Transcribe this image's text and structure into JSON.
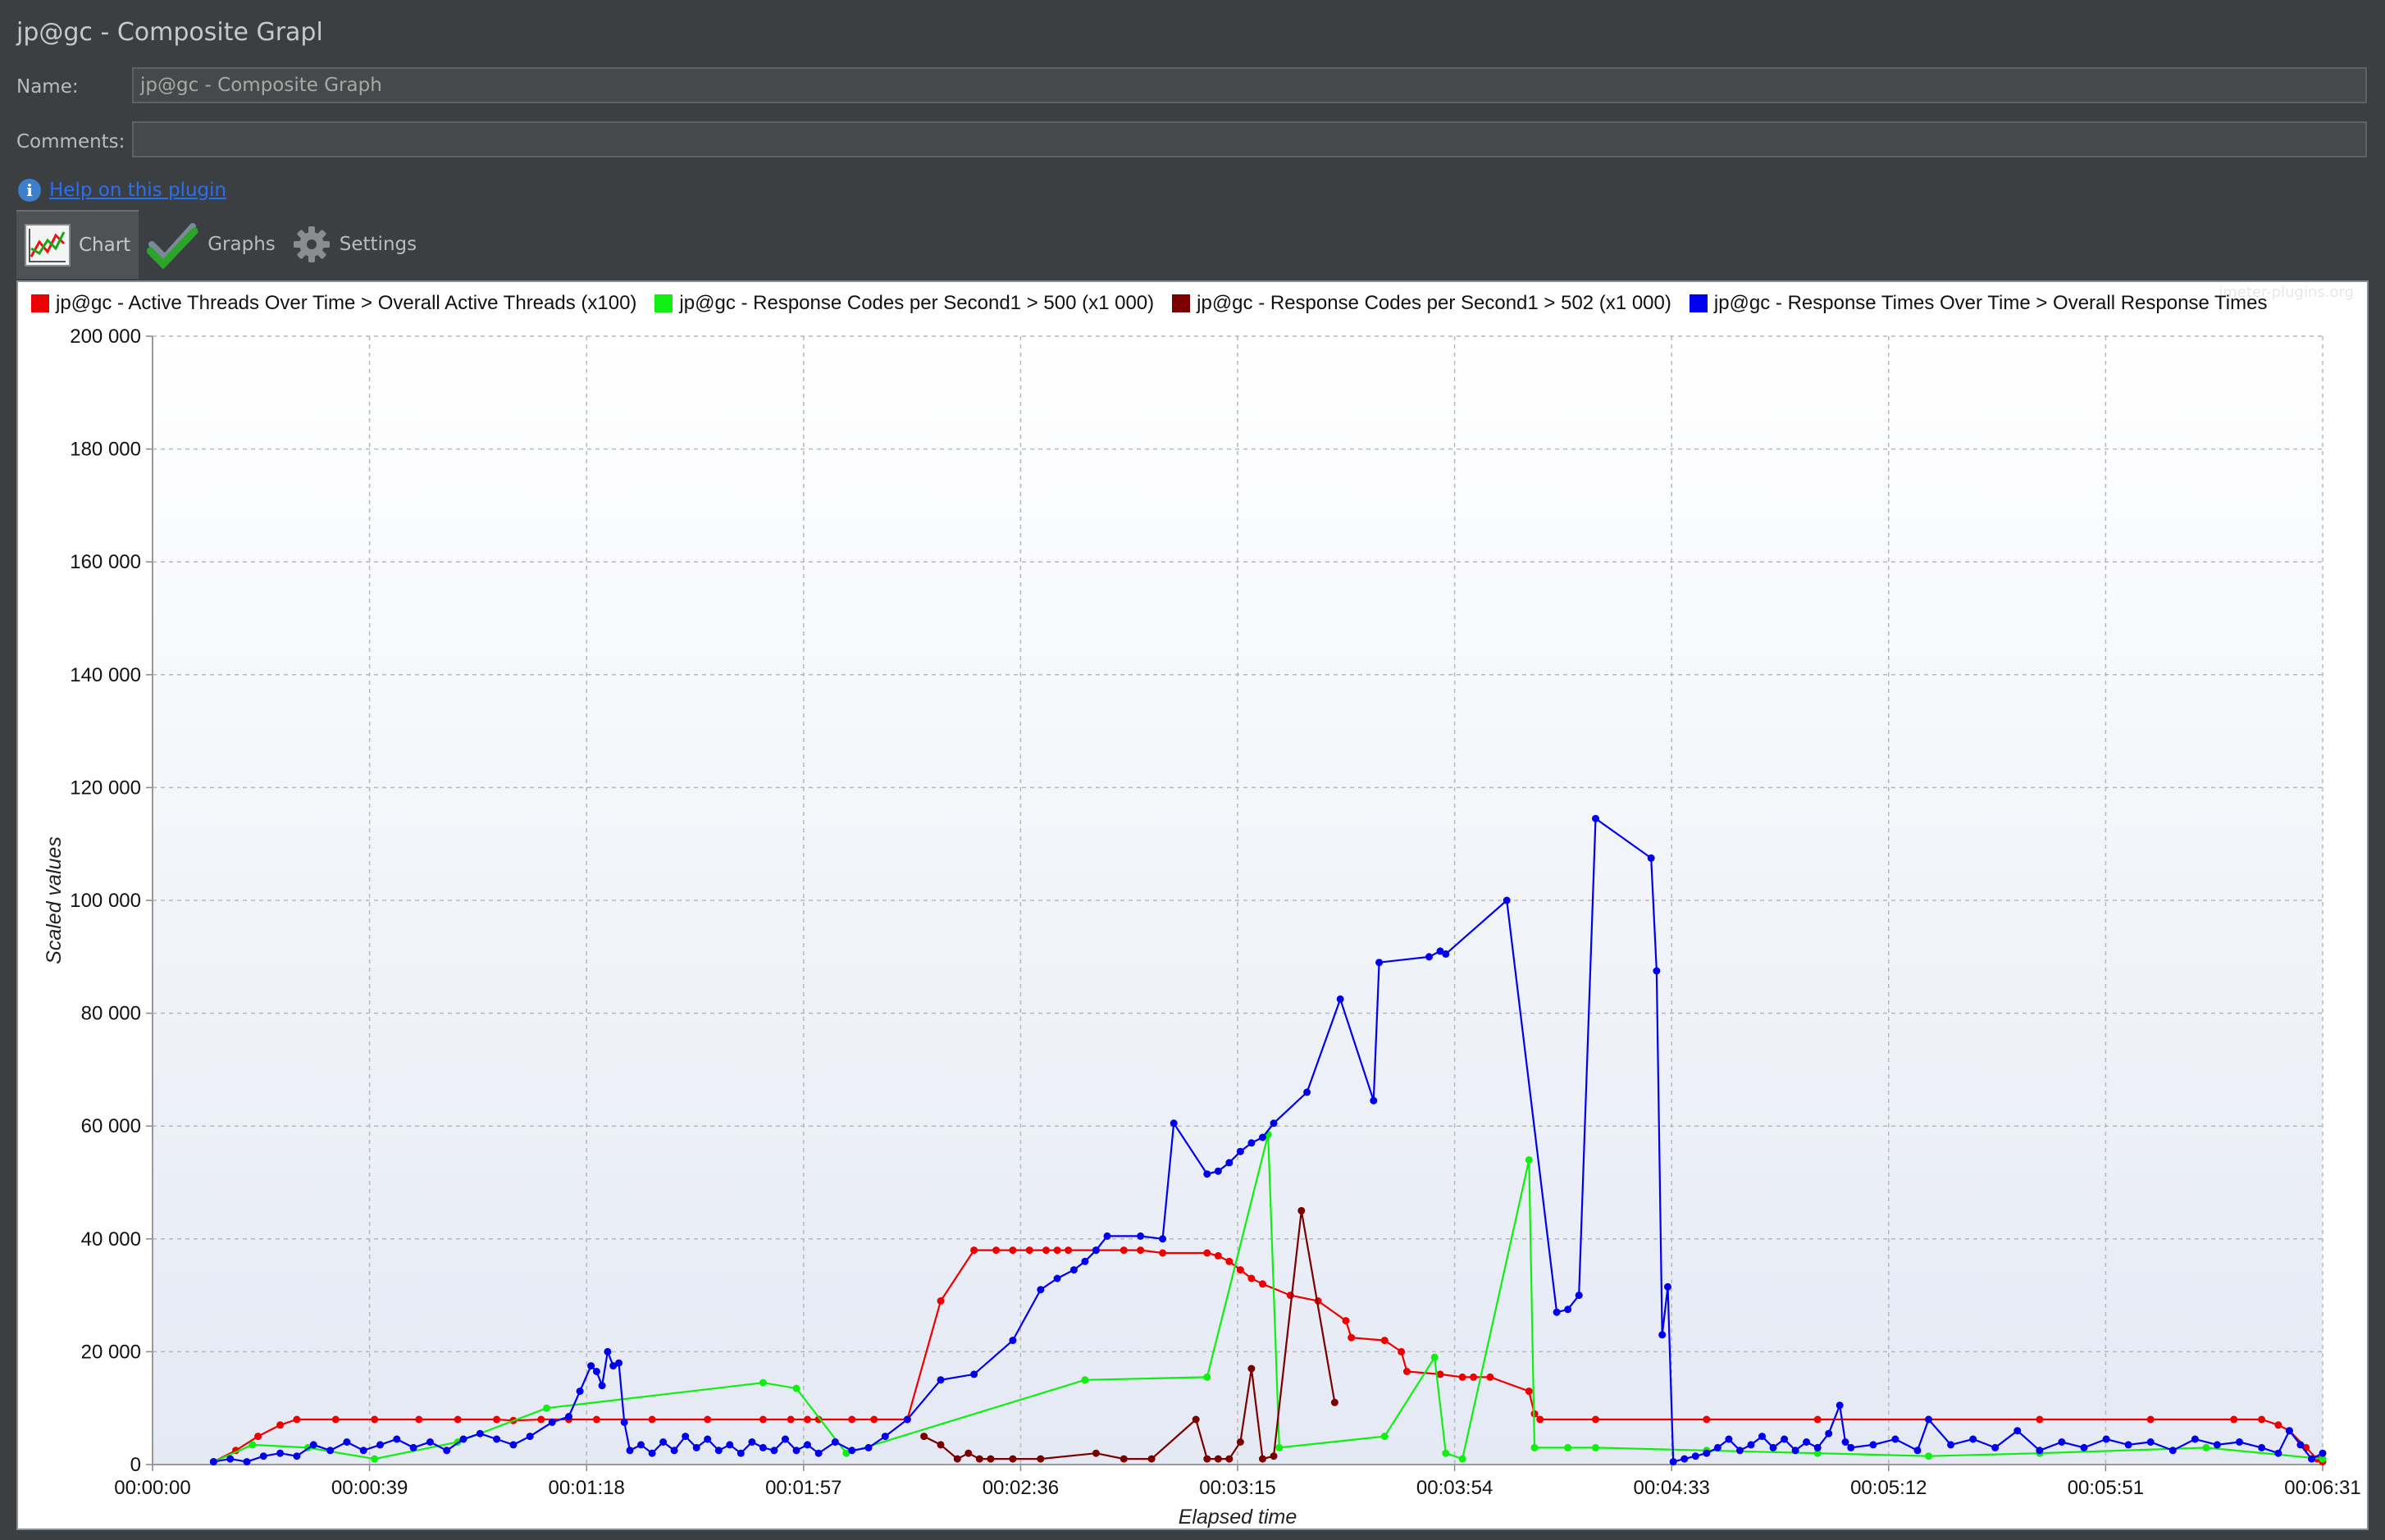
{
  "panel": {
    "title": "jp@gc - Composite Grapl"
  },
  "form": {
    "name_label": "Name:",
    "name_value": "jp@gc - Composite Graph",
    "comments_label": "Comments:",
    "comments_value": ""
  },
  "help": {
    "icon": "info-icon",
    "link_text": "Help on this plugin"
  },
  "tabs": [
    {
      "label": "Chart",
      "icon": "chart-icon",
      "active": true
    },
    {
      "label": "Graphs",
      "icon": "checkmark-icon",
      "active": false
    },
    {
      "label": "Settings",
      "icon": "gear-icon",
      "active": false
    }
  ],
  "watermark": "jmeter-plugins.org",
  "colors": {
    "threads": "#ee0000",
    "codes500": "#11ee11",
    "codes502": "#7a0000",
    "response": "#0000ee"
  },
  "chart_data": {
    "type": "line",
    "xlabel": "Elapsed time",
    "ylabel": "Scaled values",
    "x_unit": "seconds",
    "xlim": [
      0,
      391
    ],
    "ylim": [
      0,
      200000
    ],
    "x_ticks": [
      "00:00:00",
      "00:00:39",
      "00:01:18",
      "00:01:57",
      "00:02:36",
      "00:03:15",
      "00:03:54",
      "00:04:33",
      "00:05:12",
      "00:05:51",
      "00:06:31"
    ],
    "y_ticks": [
      "0",
      "20 000",
      "40 000",
      "60 000",
      "80 000",
      "100 000",
      "120 000",
      "140 000",
      "160 000",
      "180 000",
      "200 000"
    ],
    "grid": true,
    "legend_position": "top",
    "series": [
      {
        "name": "jp@gc - Active Threads Over Time > Overall Active Threads (x100)",
        "points": [
          [
            11,
            500
          ],
          [
            15,
            2500
          ],
          [
            19,
            5000
          ],
          [
            23,
            7000
          ],
          [
            26,
            8000
          ],
          [
            33,
            8000
          ],
          [
            40,
            8000
          ],
          [
            48,
            8000
          ],
          [
            55,
            8000
          ],
          [
            62,
            8000
          ],
          [
            65,
            7800
          ],
          [
            70,
            8000
          ],
          [
            75,
            8000
          ],
          [
            80,
            8000
          ],
          [
            90,
            8000
          ],
          [
            100,
            8000
          ],
          [
            110,
            8000
          ],
          [
            115,
            8000
          ],
          [
            118,
            8000
          ],
          [
            120,
            8000
          ],
          [
            126,
            8000
          ],
          [
            130,
            8000
          ],
          [
            136,
            8000
          ],
          [
            142,
            29000
          ],
          [
            148,
            38000
          ],
          [
            152,
            38000
          ],
          [
            155,
            38000
          ],
          [
            158,
            38000
          ],
          [
            161,
            38000
          ],
          [
            163,
            38000
          ],
          [
            165,
            38000
          ],
          [
            170,
            38000
          ],
          [
            175,
            38000
          ],
          [
            178,
            38000
          ],
          [
            182,
            37500
          ],
          [
            190,
            37500
          ],
          [
            192,
            37000
          ],
          [
            194,
            36000
          ],
          [
            196,
            34500
          ],
          [
            198,
            33000
          ],
          [
            200,
            32000
          ],
          [
            205,
            30000
          ],
          [
            210,
            29000
          ],
          [
            215,
            25500
          ],
          [
            216,
            22500
          ],
          [
            222,
            22000
          ],
          [
            225,
            20000
          ],
          [
            226,
            16500
          ],
          [
            232,
            16000
          ],
          [
            236,
            15500
          ],
          [
            238,
            15500
          ],
          [
            241,
            15500
          ],
          [
            248,
            13000
          ],
          [
            249,
            9000
          ],
          [
            250,
            8000
          ],
          [
            260,
            8000
          ],
          [
            280,
            8000
          ],
          [
            300,
            8000
          ],
          [
            320,
            8000
          ],
          [
            340,
            8000
          ],
          [
            360,
            8000
          ],
          [
            375,
            8000
          ],
          [
            380,
            8000
          ],
          [
            383,
            7000
          ],
          [
            385,
            6000
          ],
          [
            388,
            3000
          ],
          [
            390,
            1000
          ],
          [
            391,
            500
          ]
        ]
      },
      {
        "name": "jp@gc - Response Codes per Second1 > 500 (x1 000)",
        "points": [
          [
            11,
            500
          ],
          [
            18,
            3500
          ],
          [
            28,
            3000
          ],
          [
            40,
            1000
          ],
          [
            55,
            4000
          ],
          [
            71,
            10000
          ],
          [
            110,
            14500
          ],
          [
            116,
            13500
          ],
          [
            125,
            2000
          ],
          [
            168,
            15000
          ],
          [
            190,
            15500
          ],
          [
            201,
            58500
          ],
          [
            203,
            3000
          ],
          [
            222,
            5000
          ],
          [
            231,
            19000
          ],
          [
            233,
            2000
          ],
          [
            236,
            1000
          ],
          [
            248,
            54000
          ],
          [
            249,
            3000
          ],
          [
            255,
            3000
          ],
          [
            260,
            3000
          ],
          [
            280,
            2500
          ],
          [
            300,
            2000
          ],
          [
            320,
            1500
          ],
          [
            340,
            2000
          ],
          [
            370,
            3000
          ],
          [
            391,
            1000
          ]
        ]
      },
      {
        "name": "jp@gc - Response Codes per Second1 > 502 (x1 000)",
        "points": [
          [
            139,
            5000
          ],
          [
            142,
            3500
          ],
          [
            145,
            1000
          ],
          [
            147,
            2000
          ],
          [
            149,
            1000
          ],
          [
            151,
            1000
          ],
          [
            155,
            1000
          ],
          [
            160,
            1000
          ],
          [
            170,
            2000
          ],
          [
            175,
            1000
          ],
          [
            180,
            1000
          ],
          [
            188,
            8000
          ],
          [
            190,
            1000
          ],
          [
            192,
            1000
          ],
          [
            194,
            1000
          ],
          [
            196,
            4000
          ],
          [
            198,
            17000
          ],
          [
            200,
            1000
          ],
          [
            202,
            1500
          ],
          [
            207,
            45000
          ],
          [
            213,
            11000
          ]
        ]
      },
      {
        "name": "jp@gc - Response Times Over Time > Overall Response Times",
        "points": [
          [
            11,
            500
          ],
          [
            14,
            1000
          ],
          [
            17,
            500
          ],
          [
            20,
            1500
          ],
          [
            23,
            2000
          ],
          [
            26,
            1500
          ],
          [
            29,
            3500
          ],
          [
            32,
            2500
          ],
          [
            35,
            4000
          ],
          [
            38,
            2500
          ],
          [
            41,
            3500
          ],
          [
            44,
            4500
          ],
          [
            47,
            3000
          ],
          [
            50,
            4000
          ],
          [
            53,
            2500
          ],
          [
            56,
            4500
          ],
          [
            59,
            5500
          ],
          [
            62,
            4500
          ],
          [
            65,
            3500
          ],
          [
            68,
            5000
          ],
          [
            72,
            7500
          ],
          [
            75,
            8500
          ],
          [
            77,
            13000
          ],
          [
            79,
            17500
          ],
          [
            80,
            16500
          ],
          [
            81,
            14000
          ],
          [
            82,
            20000
          ],
          [
            83,
            17500
          ],
          [
            84,
            18000
          ],
          [
            85,
            7500
          ],
          [
            86,
            2500
          ],
          [
            88,
            3500
          ],
          [
            90,
            2000
          ],
          [
            92,
            4000
          ],
          [
            94,
            2500
          ],
          [
            96,
            5000
          ],
          [
            98,
            3000
          ],
          [
            100,
            4500
          ],
          [
            102,
            2500
          ],
          [
            104,
            3500
          ],
          [
            106,
            2000
          ],
          [
            108,
            4000
          ],
          [
            110,
            3000
          ],
          [
            112,
            2500
          ],
          [
            114,
            4500
          ],
          [
            116,
            2500
          ],
          [
            118,
            3500
          ],
          [
            120,
            2000
          ],
          [
            123,
            4000
          ],
          [
            126,
            2500
          ],
          [
            129,
            3000
          ],
          [
            132,
            5000
          ],
          [
            136,
            8000
          ],
          [
            142,
            15000
          ],
          [
            148,
            16000
          ],
          [
            155,
            22000
          ],
          [
            160,
            31000
          ],
          [
            163,
            33000
          ],
          [
            166,
            34500
          ],
          [
            168,
            36000
          ],
          [
            170,
            38000
          ],
          [
            172,
            40500
          ],
          [
            178,
            40500
          ],
          [
            182,
            40000
          ],
          [
            184,
            60500
          ],
          [
            190,
            51500
          ],
          [
            192,
            52000
          ],
          [
            194,
            53500
          ],
          [
            196,
            55500
          ],
          [
            198,
            57000
          ],
          [
            200,
            58000
          ],
          [
            202,
            60500
          ],
          [
            208,
            66000
          ],
          [
            214,
            82500
          ],
          [
            220,
            64500
          ],
          [
            221,
            89000
          ],
          [
            230,
            90000
          ],
          [
            232,
            91000
          ],
          [
            233,
            90500
          ],
          [
            244,
            100000
          ],
          [
            253,
            27000
          ],
          [
            255,
            27500
          ],
          [
            257,
            30000
          ],
          [
            260,
            114500
          ],
          [
            270,
            107500
          ],
          [
            271,
            87500
          ],
          [
            272,
            23000
          ],
          [
            273,
            31500
          ],
          [
            274,
            500
          ],
          [
            276,
            1000
          ],
          [
            278,
            1500
          ],
          [
            280,
            2000
          ],
          [
            282,
            3000
          ],
          [
            284,
            4500
          ],
          [
            286,
            2500
          ],
          [
            288,
            3500
          ],
          [
            290,
            5000
          ],
          [
            292,
            3000
          ],
          [
            294,
            4500
          ],
          [
            296,
            2500
          ],
          [
            298,
            4000
          ],
          [
            300,
            3000
          ],
          [
            302,
            5500
          ],
          [
            304,
            10500
          ],
          [
            305,
            4000
          ],
          [
            306,
            3000
          ],
          [
            310,
            3500
          ],
          [
            314,
            4500
          ],
          [
            318,
            2500
          ],
          [
            320,
            8000
          ],
          [
            324,
            3500
          ],
          [
            328,
            4500
          ],
          [
            332,
            3000
          ],
          [
            336,
            6000
          ],
          [
            340,
            2500
          ],
          [
            344,
            4000
          ],
          [
            348,
            3000
          ],
          [
            352,
            4500
          ],
          [
            356,
            3500
          ],
          [
            360,
            4000
          ],
          [
            364,
            2500
          ],
          [
            368,
            4500
          ],
          [
            372,
            3500
          ],
          [
            376,
            4000
          ],
          [
            380,
            3000
          ],
          [
            383,
            2000
          ],
          [
            385,
            6000
          ],
          [
            387,
            3500
          ],
          [
            389,
            1000
          ],
          [
            391,
            2000
          ]
        ]
      }
    ]
  }
}
